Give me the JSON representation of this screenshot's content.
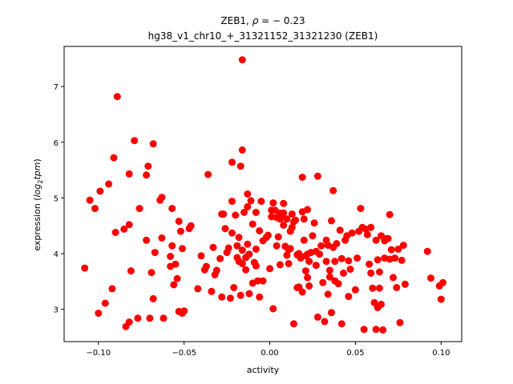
{
  "chart_data": {
    "type": "scatter",
    "title_line1_prefix": "ZEB1, ",
    "title_rho_symbol": "ρ",
    "title_rho_value": " = − 0.23",
    "title_line2": "hg38_v1_chr10_+_31321152_31321230 (ZEB1)",
    "xlabel": "activity",
    "ylabel_prefix": "expression (",
    "ylabel_italic": "log",
    "ylabel_sub": "2",
    "ylabel_italic2": "tpm",
    "ylabel_suffix": ")",
    "xlim": [
      -0.12,
      0.112
    ],
    "ylim": [
      2.42,
      7.72
    ],
    "xticks": [
      -0.1,
      -0.05,
      0.0,
      0.05,
      0.1
    ],
    "xtick_labels": [
      "−0.10",
      "−0.05",
      "0.00",
      "0.05",
      "0.10"
    ],
    "yticks": [
      3,
      4,
      5,
      6,
      7
    ],
    "ytick_labels": [
      "3",
      "4",
      "5",
      "6",
      "7"
    ],
    "marker_color": "#ff0000",
    "grid": false,
    "points": [
      [
        -0.108,
        3.74
      ],
      [
        -0.105,
        4.96
      ],
      [
        -0.102,
        4.81
      ],
      [
        -0.1,
        2.93
      ],
      [
        -0.099,
        5.12
      ],
      [
        -0.096,
        3.11
      ],
      [
        -0.094,
        5.25
      ],
      [
        -0.092,
        3.37
      ],
      [
        -0.091,
        5.72
      ],
      [
        -0.09,
        4.38
      ],
      [
        -0.089,
        6.82
      ],
      [
        -0.085,
        4.44
      ],
      [
        -0.084,
        2.69
      ],
      [
        -0.082,
        5.43
      ],
      [
        -0.082,
        4.52
      ],
      [
        -0.082,
        2.77
      ],
      [
        -0.081,
        3.69
      ],
      [
        -0.079,
        6.03
      ],
      [
        -0.077,
        2.84
      ],
      [
        -0.076,
        4.81
      ],
      [
        -0.072,
        5.41
      ],
      [
        -0.072,
        4.24
      ],
      [
        -0.071,
        5.57
      ],
      [
        -0.07,
        2.84
      ],
      [
        -0.069,
        3.66
      ],
      [
        -0.068,
        3.19
      ],
      [
        -0.068,
        5.97
      ],
      [
        -0.067,
        4.02
      ],
      [
        -0.064,
        4.96
      ],
      [
        -0.063,
        5.01
      ],
      [
        -0.063,
        4.28
      ],
      [
        -0.062,
        2.84
      ],
      [
        -0.058,
        3.95
      ],
      [
        -0.058,
        3.77
      ],
      [
        -0.057,
        4.81
      ],
      [
        -0.057,
        4.14
      ],
      [
        -0.056,
        3.44
      ],
      [
        -0.055,
        3.81
      ],
      [
        -0.054,
        3.55
      ],
      [
        -0.053,
        4.58
      ],
      [
        -0.053,
        2.96
      ],
      [
        -0.052,
        4.4
      ],
      [
        -0.051,
        4.09
      ],
      [
        -0.051,
        2.93
      ],
      [
        -0.05,
        2.97
      ],
      [
        -0.047,
        4.45
      ],
      [
        -0.046,
        4.5
      ],
      [
        -0.042,
        3.37
      ],
      [
        -0.04,
        3.96
      ],
      [
        -0.038,
        3.71
      ],
      [
        -0.037,
        3.77
      ],
      [
        -0.036,
        5.42
      ],
      [
        -0.034,
        3.32
      ],
      [
        -0.033,
        4.11
      ],
      [
        -0.032,
        3.62
      ],
      [
        -0.031,
        3.7
      ],
      [
        -0.029,
        3.91
      ],
      [
        -0.028,
        4.71
      ],
      [
        -0.028,
        3.22
      ],
      [
        -0.027,
        4.71
      ],
      [
        -0.026,
        4.45
      ],
      [
        -0.025,
        4.02
      ],
      [
        -0.024,
        4.1
      ],
      [
        -0.023,
        3.2
      ],
      [
        -0.022,
        4.37
      ],
      [
        -0.022,
        5.64
      ],
      [
        -0.022,
        4.94
      ],
      [
        -0.021,
        3.39
      ],
      [
        -0.02,
        4.69
      ],
      [
        -0.019,
        4.14
      ],
      [
        -0.019,
        3.93
      ],
      [
        -0.018,
        3.86
      ],
      [
        -0.018,
        4.29
      ],
      [
        -0.017,
        5.57
      ],
      [
        -0.017,
        3.25
      ],
      [
        -0.016,
        3.82
      ],
      [
        -0.016,
        4.06
      ],
      [
        -0.016,
        5.86
      ],
      [
        -0.016,
        7.48
      ],
      [
        -0.015,
        4.74
      ],
      [
        -0.014,
        3.71
      ],
      [
        -0.014,
        3.93
      ],
      [
        -0.013,
        5.07
      ],
      [
        -0.013,
        4.17
      ],
      [
        -0.013,
        4.84
      ],
      [
        -0.012,
        3.28
      ],
      [
        -0.012,
        3.99
      ],
      [
        -0.011,
        4.95
      ],
      [
        -0.01,
        4.53
      ],
      [
        -0.01,
        3.47
      ],
      [
        -0.009,
        3.84
      ],
      [
        -0.008,
        3.78
      ],
      [
        -0.008,
        4.08
      ],
      [
        -0.008,
        4.74
      ],
      [
        -0.007,
        3.51
      ],
      [
        -0.006,
        4.41
      ],
      [
        -0.006,
        3.22
      ],
      [
        -0.005,
        4.94
      ],
      [
        -0.004,
        4.23
      ],
      [
        -0.004,
        3.51
      ],
      [
        -0.002,
        4.29
      ],
      [
        -0.001,
        4.33
      ],
      [
        0.0,
        3.73
      ],
      [
        0.001,
        4.78
      ],
      [
        0.001,
        4.66
      ],
      [
        0.002,
        4.91
      ],
      [
        0.002,
        3.01
      ],
      [
        0.003,
        4.78
      ],
      [
        0.004,
        4.65
      ],
      [
        0.004,
        4.14
      ],
      [
        0.005,
        4.3
      ],
      [
        0.006,
        4.62
      ],
      [
        0.006,
        4.73
      ],
      [
        0.006,
        3.8
      ],
      [
        0.007,
        4.7
      ],
      [
        0.008,
        4.73
      ],
      [
        0.008,
        4.51
      ],
      [
        0.008,
        4.9
      ],
      [
        0.009,
        4.13
      ],
      [
        0.01,
        4.62
      ],
      [
        0.01,
        3.97
      ],
      [
        0.011,
        4.07
      ],
      [
        0.011,
        3.82
      ],
      [
        0.012,
        4.4
      ],
      [
        0.012,
        4.09
      ],
      [
        0.013,
        4.71
      ],
      [
        0.013,
        4.47
      ],
      [
        0.014,
        2.74
      ],
      [
        0.014,
        4.57
      ],
      [
        0.015,
        4.6
      ],
      [
        0.016,
        3.39
      ],
      [
        0.016,
        3.98
      ],
      [
        0.017,
        3.4
      ],
      [
        0.017,
        4.0
      ],
      [
        0.018,
        3.92
      ],
      [
        0.019,
        4.75
      ],
      [
        0.019,
        5.37
      ],
      [
        0.019,
        3.31
      ],
      [
        0.02,
        4.62
      ],
      [
        0.02,
        4.24
      ],
      [
        0.021,
        3.96
      ],
      [
        0.021,
        3.69
      ],
      [
        0.022,
        3.57
      ],
      [
        0.022,
        3.99
      ],
      [
        0.022,
        4.79
      ],
      [
        0.023,
        3.86
      ],
      [
        0.023,
        3.42
      ],
      [
        0.024,
        4.02
      ],
      [
        0.025,
        4.32
      ],
      [
        0.026,
        4.55
      ],
      [
        0.027,
        4.04
      ],
      [
        0.027,
        3.79
      ],
      [
        0.028,
        5.39
      ],
      [
        0.028,
        2.86
      ],
      [
        0.029,
        3.99
      ],
      [
        0.03,
        4.14
      ],
      [
        0.031,
        3.48
      ],
      [
        0.032,
        2.78
      ],
      [
        0.033,
        4.24
      ],
      [
        0.033,
        3.86
      ],
      [
        0.034,
        3.27
      ],
      [
        0.034,
        4.15
      ],
      [
        0.035,
        3.7
      ],
      [
        0.035,
        3.58
      ],
      [
        0.036,
        4.59
      ],
      [
        0.036,
        2.94
      ],
      [
        0.037,
        5.13
      ],
      [
        0.037,
        4.11
      ],
      [
        0.038,
        3.86
      ],
      [
        0.038,
        3.51
      ],
      [
        0.039,
        4.18
      ],
      [
        0.04,
        3.46
      ],
      [
        0.041,
        4.42
      ],
      [
        0.042,
        3.91
      ],
      [
        0.042,
        2.74
      ],
      [
        0.043,
        3.65
      ],
      [
        0.044,
        4.24
      ],
      [
        0.045,
        4.32
      ],
      [
        0.046,
        3.23
      ],
      [
        0.046,
        3.87
      ],
      [
        0.047,
        3.72
      ],
      [
        0.048,
        4.37
      ],
      [
        0.05,
        3.35
      ],
      [
        0.051,
        3.92
      ],
      [
        0.052,
        4.4
      ],
      [
        0.053,
        4.81
      ],
      [
        0.054,
        4.47
      ],
      [
        0.055,
        2.64
      ],
      [
        0.056,
        4.44
      ],
      [
        0.057,
        4.34
      ],
      [
        0.058,
        3.81
      ],
      [
        0.059,
        4.47
      ],
      [
        0.059,
        3.65
      ],
      [
        0.06,
        3.38
      ],
      [
        0.061,
        3.12
      ],
      [
        0.062,
        2.64
      ],
      [
        0.062,
        4.24
      ],
      [
        0.063,
        3.03
      ],
      [
        0.063,
        3.89
      ],
      [
        0.064,
        3.38
      ],
      [
        0.064,
        3.67
      ],
      [
        0.065,
        4.32
      ],
      [
        0.065,
        3.09
      ],
      [
        0.066,
        2.63
      ],
      [
        0.067,
        3.92
      ],
      [
        0.067,
        4.23
      ],
      [
        0.068,
        4.27
      ],
      [
        0.069,
        4.27
      ],
      [
        0.07,
        3.9
      ],
      [
        0.07,
        4.7
      ],
      [
        0.071,
        4.07
      ],
      [
        0.072,
        3.57
      ],
      [
        0.073,
        3.92
      ],
      [
        0.074,
        3.39
      ],
      [
        0.075,
        4.08
      ],
      [
        0.076,
        2.76
      ],
      [
        0.077,
        3.88
      ],
      [
        0.078,
        4.15
      ],
      [
        0.079,
        3.45
      ],
      [
        0.092,
        4.04
      ],
      [
        0.094,
        3.56
      ],
      [
        0.099,
        3.42
      ],
      [
        0.101,
        3.48
      ],
      [
        0.1,
        3.18
      ]
    ]
  }
}
